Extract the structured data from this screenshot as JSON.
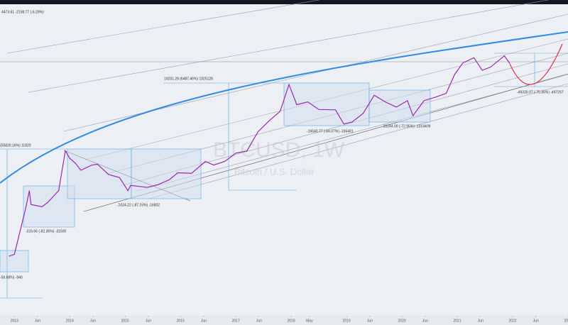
{
  "chart_data": {
    "type": "line",
    "title": "BTCUSD, 1W",
    "subtitle": "Bitcoin / U.S. Dollar",
    "log_scale": true,
    "grid": false,
    "xlim": [
      2012.74,
      2023.0
    ],
    "ylim": [
      0.93,
      560000
    ],
    "xticks": [
      {
        "value": 2013,
        "label": "2013"
      },
      {
        "value": 2013.42,
        "label": "Jun"
      },
      {
        "value": 2014,
        "label": "2014"
      },
      {
        "value": 2014.42,
        "label": "Jun"
      },
      {
        "value": 2015,
        "label": "2015"
      },
      {
        "value": 2015.42,
        "label": "Jun"
      },
      {
        "value": 2016,
        "label": "2016"
      },
      {
        "value": 2016.42,
        "label": "Jun"
      },
      {
        "value": 2017,
        "label": "2017"
      },
      {
        "value": 2017.42,
        "label": "Jun"
      },
      {
        "value": 2018,
        "label": "2018"
      },
      {
        "value": 2018.33,
        "label": "May"
      },
      {
        "value": 2019,
        "label": "2019"
      },
      {
        "value": 2019.42,
        "label": "Jun"
      },
      {
        "value": 2020,
        "label": "2020"
      },
      {
        "value": 2020.42,
        "label": "Jun"
      },
      {
        "value": 2021,
        "label": "2021"
      },
      {
        "value": 2021.42,
        "label": "Jun"
      },
      {
        "value": 2022,
        "label": "2022"
      },
      {
        "value": 2022.42,
        "label": "Jun"
      },
      {
        "value": 2023,
        "label": "2023"
      }
    ],
    "x": [
      2012.9,
      2013.0,
      2013.2,
      2013.27,
      2013.3,
      2013.5,
      2013.6,
      2013.8,
      2013.92,
      2014.0,
      2014.1,
      2014.2,
      2014.4,
      2014.5,
      2014.7,
      2014.9,
      2015.05,
      2015.1,
      2015.4,
      2015.6,
      2015.8,
      2015.95,
      2016.2,
      2016.45,
      2016.6,
      2016.8,
      2017.0,
      2017.2,
      2017.4,
      2017.6,
      2017.8,
      2017.96,
      2018.1,
      2018.3,
      2018.5,
      2018.8,
      2018.95,
      2019.1,
      2019.3,
      2019.5,
      2019.7,
      2019.9,
      2020.1,
      2020.2,
      2020.4,
      2020.6,
      2020.8,
      2020.95,
      2021.1,
      2021.3,
      2021.45,
      2021.6,
      2021.85,
      2021.95
    ],
    "series": [
      {
        "name": "BTCUSD",
        "color": "#9c27b0",
        "values": [
          12,
          13,
          90,
          200,
          110,
          100,
          120,
          200,
          1100,
          800,
          650,
          480,
          600,
          620,
          400,
          350,
          200,
          250,
          230,
          260,
          320,
          430,
          420,
          700,
          600,
          700,
          1000,
          1100,
          2500,
          4000,
          6000,
          19000,
          8000,
          9000,
          6500,
          6400,
          3500,
          3800,
          5500,
          12000,
          9000,
          7200,
          9500,
          5000,
          9500,
          11000,
          13000,
          29000,
          48000,
          60000,
          35000,
          40000,
          65000,
          47000
        ]
      }
    ],
    "annotations": [
      "4473.61  -2158.77 (-6.29%)",
      "(55820.16%)  11820",
      "-315.66 (-82.36%)  -31500",
      "-1024.22 (-87.15%)  -16802",
      "19251.28 (6487.46%)  1925128",
      "-16540.77 (-84.07%)  -165401",
      "-10244.09 (-72.95%)  -1014409",
      "-49330.07 (-75.36%)  -497297",
      "-56.68%)  -940"
    ]
  }
}
